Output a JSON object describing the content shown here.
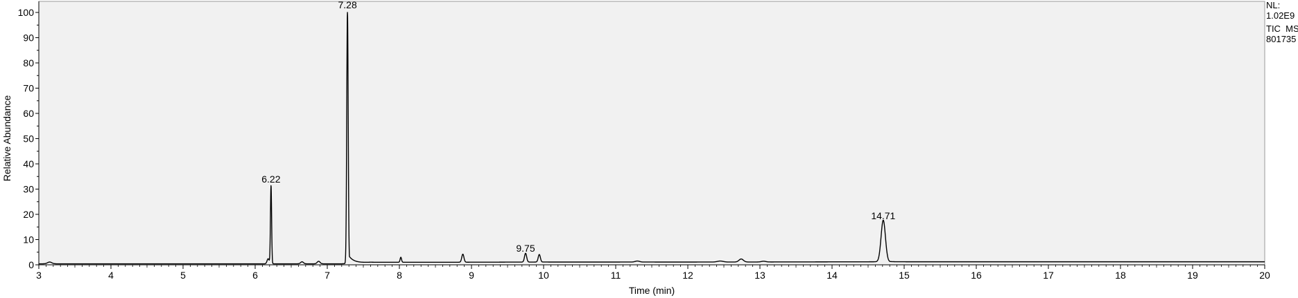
{
  "chart_data": {
    "type": "line",
    "title": "",
    "xlabel": "Time (min)",
    "ylabel": "Relative Abundance",
    "xlim": [
      3,
      20
    ],
    "ylim": [
      0,
      100
    ],
    "x_ticks": [
      3,
      4,
      5,
      6,
      7,
      8,
      9,
      10,
      11,
      12,
      13,
      14,
      15,
      16,
      17,
      18,
      19,
      20
    ],
    "y_ticks": [
      0,
      10,
      20,
      30,
      40,
      50,
      60,
      70,
      80,
      90,
      100
    ],
    "grid": false,
    "legend": "none",
    "plot_background": "#f1f1f1",
    "line_color": "#000000",
    "baseline": [
      [
        3,
        0.4
      ],
      [
        7.2,
        0.4
      ],
      [
        7.6,
        1.0
      ],
      [
        8.5,
        1.0
      ],
      [
        10.0,
        1.1
      ],
      [
        12.5,
        1.1
      ],
      [
        14.6,
        1.2
      ],
      [
        15.2,
        1.2
      ],
      [
        20,
        1.2
      ]
    ],
    "peaks": [
      {
        "rt": 3.15,
        "height": 0.7,
        "width": 0.03
      },
      {
        "rt": 6.18,
        "height": 2.0,
        "width": 0.015
      },
      {
        "rt": 6.22,
        "height": 31,
        "width": 0.008,
        "label": "6.22"
      },
      {
        "rt": 6.65,
        "height": 0.8,
        "width": 0.02
      },
      {
        "rt": 6.88,
        "height": 1.0,
        "width": 0.02
      },
      {
        "rt": 7.28,
        "height": 100,
        "width": 0.01,
        "tail": 0.07,
        "label": "7.28"
      },
      {
        "rt": 8.02,
        "height": 2.0,
        "width": 0.01
      },
      {
        "rt": 8.88,
        "height": 3.2,
        "width": 0.015
      },
      {
        "rt": 9.75,
        "height": 3.5,
        "width": 0.015,
        "label": "9.75"
      },
      {
        "rt": 9.94,
        "height": 3.0,
        "width": 0.015
      },
      {
        "rt": 11.3,
        "height": 0.4,
        "width": 0.03
      },
      {
        "rt": 12.45,
        "height": 0.4,
        "width": 0.04
      },
      {
        "rt": 12.74,
        "height": 1.2,
        "width": 0.03
      },
      {
        "rt": 13.05,
        "height": 0.3,
        "width": 0.03
      },
      {
        "rt": 14.71,
        "height": 16.5,
        "width": 0.03,
        "tail": 0.05,
        "label": "14.71"
      }
    ],
    "annotations": [
      "6.22",
      "7.28",
      "9.75",
      "14.71"
    ]
  },
  "info": {
    "nl_label": "NL:",
    "nl_value": "1.02E9",
    "trace": "TIC  MS",
    "file": "801735"
  }
}
